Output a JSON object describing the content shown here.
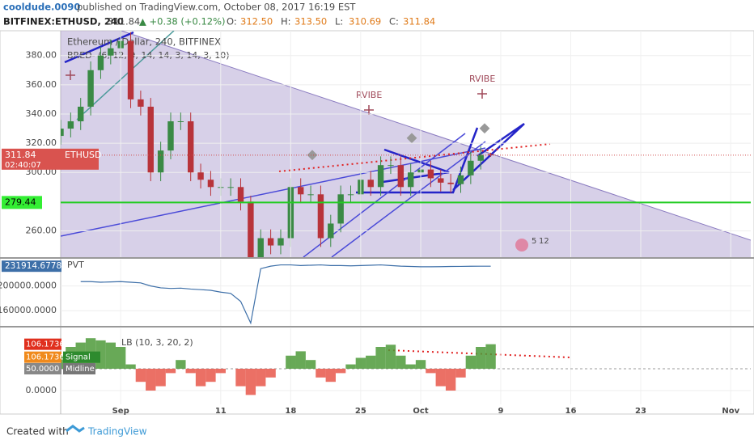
{
  "header": {
    "author": "cooldude.0090",
    "published": "published on TradingView.com, October 08, 2017 16:19 EST",
    "symbol": "BITFINEX:ETHUSD, 240",
    "last": "311.84",
    "change": "▲ +0.38 (+0.12%)",
    "ohlc": [
      {
        "label": "O:",
        "value": "312.50"
      },
      {
        "label": "H:",
        "value": "313.50"
      },
      {
        "label": "L:",
        "value": "310.69"
      },
      {
        "label": "C:",
        "value": "311.84"
      }
    ]
  },
  "footer": {
    "created": "Created with",
    "brand": "TradingView"
  },
  "chart_data": [
    {
      "type": "candlestick",
      "title": "Ethereum / Dollar, 240, BITFINEX",
      "subtitle": "BRED- (6, 12, 9, 14, 14, 3, 14, 3, 10)",
      "symbol_label": "ETHUSD",
      "countdown": "02:40:07",
      "x": [
        "2017-08-26",
        "2017-08-27",
        "2017-08-28",
        "2017-08-29",
        "2017-08-30",
        "2017-08-31",
        "2017-09-01",
        "2017-09-02",
        "2017-09-03",
        "2017-09-04",
        "2017-09-05",
        "2017-09-06",
        "2017-09-07",
        "2017-09-08",
        "2017-09-09",
        "2017-09-10",
        "2017-09-11",
        "2017-09-12",
        "2017-09-13",
        "2017-09-14",
        "2017-09-15",
        "2017-09-16",
        "2017-09-17",
        "2017-09-18",
        "2017-09-19",
        "2017-09-20",
        "2017-09-21",
        "2017-09-22",
        "2017-09-23",
        "2017-09-24",
        "2017-09-25",
        "2017-09-26",
        "2017-09-27",
        "2017-09-28",
        "2017-09-29",
        "2017-09-30",
        "2017-10-01",
        "2017-10-02",
        "2017-10-03",
        "2017-10-04",
        "2017-10-05",
        "2017-10-06",
        "2017-10-07",
        "2017-10-08"
      ],
      "open": [
        325,
        330,
        335,
        345,
        370,
        380,
        385,
        390,
        350,
        345,
        300,
        315,
        335,
        335,
        300,
        295,
        290,
        290,
        290,
        280,
        220,
        255,
        250,
        255,
        290,
        285,
        285,
        255,
        265,
        285,
        285,
        295,
        290,
        305,
        305,
        290,
        300,
        302,
        296,
        293,
        292,
        298,
        308,
        312.5
      ],
      "high": [
        336,
        341,
        351,
        376,
        386,
        391,
        400,
        396,
        356,
        351,
        321,
        341,
        341,
        341,
        306,
        301,
        296,
        296,
        296,
        284,
        261,
        261,
        261,
        296,
        296,
        291,
        291,
        271,
        291,
        291,
        301,
        301,
        311,
        311,
        311,
        306,
        308,
        308,
        302,
        299,
        304,
        314,
        318,
        313.5
      ],
      "low": [
        319,
        324,
        329,
        339,
        364,
        374,
        379,
        344,
        339,
        294,
        294,
        309,
        329,
        294,
        289,
        284,
        284,
        284,
        274,
        200,
        214,
        244,
        244,
        249,
        279,
        279,
        249,
        249,
        259,
        279,
        279,
        284,
        284,
        299,
        284,
        284,
        294,
        290,
        287,
        286,
        286,
        292,
        302,
        310.69
      ],
      "close": [
        330,
        335,
        345,
        370,
        380,
        385,
        390,
        350,
        345,
        300,
        315,
        335,
        335,
        300,
        295,
        290,
        290,
        290,
        280,
        220,
        255,
        250,
        255,
        290,
        285,
        285,
        255,
        265,
        285,
        285,
        295,
        290,
        305,
        305,
        290,
        300,
        302,
        296,
        293,
        292,
        298,
        308,
        312,
        311.84
      ],
      "up_color": "#3a8a45",
      "down_color": "#b8333a",
      "xlim": [
        "2017-08-26",
        "2017-11-03"
      ],
      "xticks": [
        {
          "value": "2017-09-01",
          "label": "Sep"
        },
        {
          "value": "2017-09-11",
          "label": "11"
        },
        {
          "value": "2017-09-18",
          "label": "18"
        },
        {
          "value": "2017-09-25",
          "label": "25"
        },
        {
          "value": "2017-10-01",
          "label": "Oct"
        },
        {
          "value": "2017-10-09",
          "label": "9"
        },
        {
          "value": "2017-10-16",
          "label": "16"
        },
        {
          "value": "2017-10-23",
          "label": "23"
        },
        {
          "value": "2017-11-01",
          "label": "Nov"
        }
      ],
      "ylim": [
        242,
        397
      ],
      "yticks": [
        {
          "value": 260,
          "label": "260.00"
        },
        {
          "value": 300,
          "label": "300.00"
        },
        {
          "value": 320,
          "label": "320.00"
        },
        {
          "value": 340,
          "label": "340.00"
        },
        {
          "value": 360,
          "label": "360.00"
        },
        {
          "value": 380,
          "label": "380.00"
        }
      ],
      "hline": 279.44,
      "annotations": [
        "RVIBE",
        "RVIBE",
        "5",
        "12"
      ]
    },
    {
      "type": "line",
      "title": "PVT",
      "color": "#3d6fa8",
      "values": [
        null,
        null,
        207000,
        207000,
        206000,
        206500,
        207000,
        206000,
        205000,
        200000,
        197000,
        196000,
        196500,
        195000,
        194000,
        193000,
        190000,
        188000,
        175000,
        140000,
        228000,
        232000,
        234000,
        234000,
        233000,
        233500,
        234000,
        233000,
        233000,
        232500,
        233000,
        233500,
        234000,
        233000,
        232000,
        231500,
        231000,
        231000,
        231200,
        231500,
        231600,
        231800,
        231900,
        231914.6778
      ],
      "ylim": [
        135500,
        242600
      ],
      "yticks": [
        {
          "value": 160000,
          "label": "160000.0000"
        },
        {
          "value": 200000,
          "label": "200000.0000"
        }
      ]
    },
    {
      "type": "bar",
      "title": "LB (10, 3, 20, 2)",
      "signal_label": "Signal",
      "midline_label": "Midline",
      "above_color": "#4e9a3a",
      "below_color": "#e8574a",
      "values": [
        80,
        100,
        110,
        120,
        115,
        110,
        100,
        60,
        20,
        0,
        10,
        40,
        70,
        40,
        10,
        20,
        40,
        50,
        10,
        -10,
        10,
        30,
        50,
        80,
        90,
        70,
        30,
        20,
        40,
        60,
        75,
        80,
        100,
        105,
        80,
        60,
        70,
        40,
        10,
        0,
        30,
        80,
        100,
        106.1736
      ],
      "midline": {
        "value": 50,
        "label": "50.0000"
      },
      "ylim": [
        -31.5,
        142.6
      ],
      "yticks": [
        {
          "value": 0,
          "label": "0.0000"
        }
      ]
    }
  ]
}
